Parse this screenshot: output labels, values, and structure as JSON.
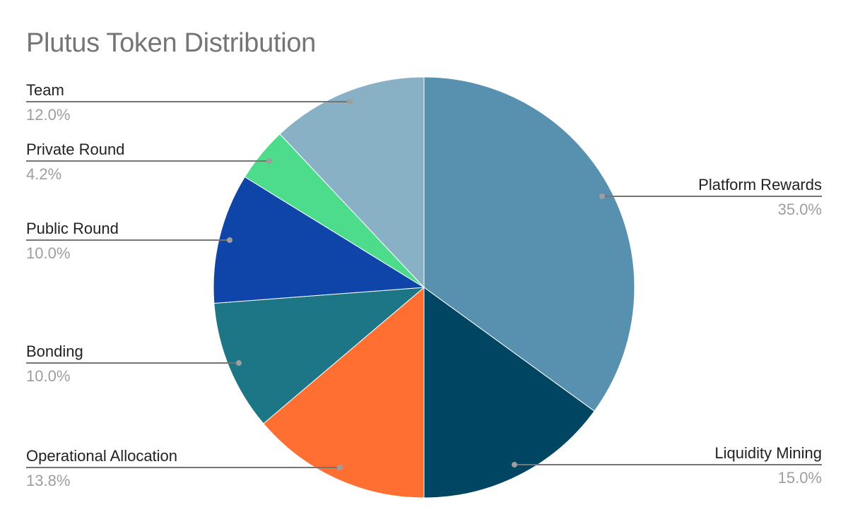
{
  "chart_data": {
    "type": "pie",
    "title": "Plutus Token Distribution",
    "legend": "none",
    "start_angle_deg": 0,
    "direction": "clockwise",
    "slices": [
      {
        "label": "Platform Rewards",
        "value": 35.0,
        "display": "35.0%",
        "color": "#5891af"
      },
      {
        "label": "Liquidity Mining",
        "value": 15.0,
        "display": "15.0%",
        "color": "#004561"
      },
      {
        "label": "Operational Allocation",
        "value": 13.8,
        "display": "13.8%",
        "color": "#ff6f31"
      },
      {
        "label": "Bonding",
        "value": 10.0,
        "display": "10.0%",
        "color": "#1c7685"
      },
      {
        "label": "Public Round",
        "value": 10.0,
        "display": "10.0%",
        "color": "#0f45a8"
      },
      {
        "label": "Private Round",
        "value": 4.2,
        "display": "4.2%",
        "color": "#4cdc8b"
      },
      {
        "label": "Team",
        "value": 12.0,
        "display": "12.0%",
        "color": "#89b1c6"
      }
    ]
  }
}
